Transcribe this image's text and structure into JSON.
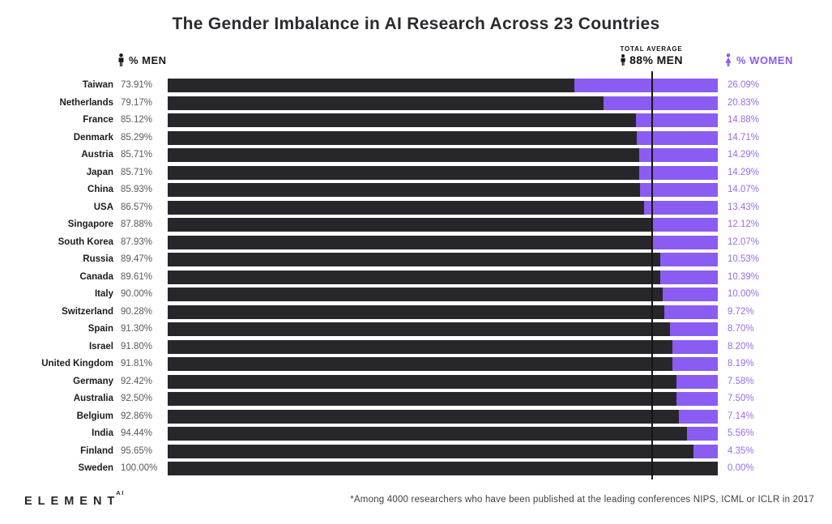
{
  "title": "The Gender Imbalance in AI Research Across 23 Countries",
  "legend": {
    "men_label": "% MEN",
    "women_label": "% WOMEN"
  },
  "average": {
    "label_line1": "TOTAL AVERAGE",
    "label_line2": "88% MEN",
    "value_pct": 88
  },
  "footer": {
    "logo_text": "ELEMENT",
    "logo_superscript": "AI",
    "footnote": "*Among 4000 researchers who have been published at the leading conferences NIPS, ICML or ICLR in 2017"
  },
  "colors": {
    "men_bar": "#27272b",
    "women_bar": "#8a5cf2",
    "women_text": "#9a6cf2",
    "average_line": "#161616"
  },
  "chart_data": {
    "type": "bar",
    "orientation": "horizontal-stacked",
    "title": "The Gender Imbalance in AI Research Across 23 Countries",
    "xlabel": "",
    "ylabel": "",
    "xlim": [
      0,
      100
    ],
    "grid": false,
    "legend_position": "top",
    "average_line_pct": 88,
    "categories": [
      "Taiwan",
      "Netherlands",
      "France",
      "Denmark",
      "Austria",
      "Japan",
      "China",
      "USA",
      "Singapore",
      "South Korea",
      "Russia",
      "Canada",
      "Italy",
      "Switzerland",
      "Spain",
      "Israel",
      "United Kingdom",
      "Germany",
      "Australia",
      "Belgium",
      "India",
      "Finland",
      "Sweden"
    ],
    "series": [
      {
        "name": "% MEN",
        "values": [
          73.91,
          79.17,
          85.12,
          85.29,
          85.71,
          85.71,
          85.93,
          86.57,
          87.88,
          87.93,
          89.47,
          89.61,
          90.0,
          90.28,
          91.3,
          91.8,
          91.81,
          92.42,
          92.5,
          92.86,
          94.44,
          95.65,
          100.0
        ]
      },
      {
        "name": "% WOMEN",
        "values": [
          26.09,
          20.83,
          14.88,
          14.71,
          14.29,
          14.29,
          14.07,
          13.43,
          12.12,
          12.07,
          10.53,
          10.39,
          10.0,
          9.72,
          8.7,
          8.2,
          8.19,
          7.58,
          7.5,
          7.14,
          5.56,
          4.35,
          0.0
        ]
      }
    ],
    "men_labels": [
      "73.91%",
      "79.17%",
      "85.12%",
      "85.29%",
      "85.71%",
      "85.71%",
      "85.93%",
      "86.57%",
      "87.88%",
      "87.93%",
      "89.47%",
      "89.61%",
      "90.00%",
      "90.28%",
      "91.30%",
      "91.80%",
      "91.81%",
      "92.42%",
      "92.50%",
      "92.86%",
      "94.44%",
      "95.65%",
      "100.00%"
    ],
    "women_labels": [
      "26.09%",
      "20.83%",
      "14.88%",
      "14.71%",
      "14.29%",
      "14.29%",
      "14.07%",
      "13.43%",
      "12.12%",
      "12.07%",
      "10.53%",
      "10.39%",
      "10.00%",
      "9.72%",
      "8.70%",
      "8.20%",
      "8.19%",
      "7.58%",
      "7.50%",
      "7.14%",
      "5.56%",
      "4.35%",
      "0.00%"
    ]
  }
}
